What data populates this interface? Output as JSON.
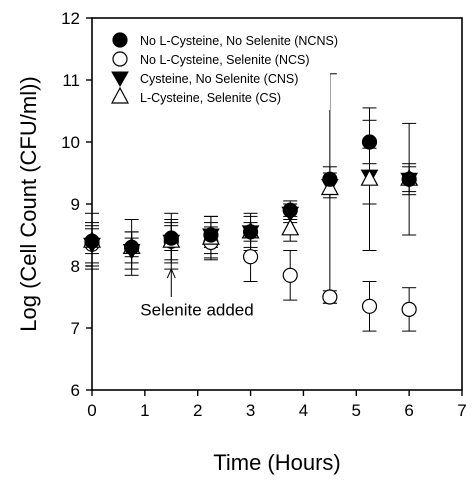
{
  "chart_data": {
    "type": "scatter",
    "title": "",
    "xlabel": "Time (Hours)",
    "ylabel": "Log (Cell Count (CFU/ml))",
    "xlim": [
      0,
      7
    ],
    "ylim": [
      6,
      12
    ],
    "x_ticks": [
      "0",
      "1",
      "2",
      "3",
      "4",
      "5",
      "6",
      "7"
    ],
    "y_ticks": [
      "6",
      "7",
      "8",
      "9",
      "10",
      "11",
      "12"
    ],
    "grid": false,
    "legend_position": "top-left",
    "series": [
      {
        "name": "No L-Cysteine, No Selenite (NCNS)",
        "marker": "circle-filled",
        "x": [
          0,
          0.75,
          1.5,
          2.25,
          3,
          3.75,
          4.5,
          5.25,
          6
        ],
        "y": [
          8.4,
          8.3,
          8.45,
          8.5,
          8.55,
          8.9,
          9.4,
          10.0,
          9.4
        ],
        "err": [
          0.2,
          0.15,
          0.2,
          0.2,
          0.15,
          0.15,
          0.2,
          0.35,
          0.25
        ]
      },
      {
        "name": "No L-Cysteine, Selenite (NCS)",
        "marker": "circle-open",
        "x": [
          0,
          0.75,
          1.5,
          2.25,
          3,
          3.75,
          4.5,
          5.25,
          6
        ],
        "y": [
          8.35,
          8.3,
          8.4,
          8.38,
          8.15,
          7.85,
          7.5,
          7.35,
          7.3
        ],
        "err": [
          0.3,
          0.25,
          0.3,
          0.25,
          0.4,
          0.4,
          0.1,
          0.4,
          0.35
        ]
      },
      {
        "name": "Cysteine, No Selenite (CNS)",
        "marker": "triangle-down-filled",
        "x": [
          0,
          0.75,
          1.5,
          2.25,
          3,
          3.75,
          4.5,
          5.25,
          6
        ],
        "y": [
          8.35,
          8.25,
          8.4,
          8.5,
          8.55,
          8.85,
          9.3,
          9.45,
          9.4
        ],
        "err": [
          0.35,
          0.3,
          0.35,
          0.3,
          0.25,
          0.15,
          0.2,
          0.45,
          0.2
        ]
      },
      {
        "name": "L-Cysteine, Selenite (CS)",
        "marker": "triangle-up-open",
        "x": [
          0,
          0.75,
          1.5,
          2.25,
          3,
          3.75,
          4.5,
          5.25,
          6
        ],
        "y": [
          8.4,
          8.3,
          8.4,
          8.45,
          8.55,
          8.6,
          9.25,
          9.4,
          9.4
        ],
        "err": [
          0.45,
          0.45,
          0.45,
          0.35,
          0.3,
          0.2,
          1.85,
          1.15,
          0.9
        ]
      }
    ],
    "annotations": [
      {
        "text": "Selenite added",
        "x": 1.5,
        "y": 7.3,
        "arrow_to": [
          1.5,
          7.95
        ]
      }
    ]
  }
}
